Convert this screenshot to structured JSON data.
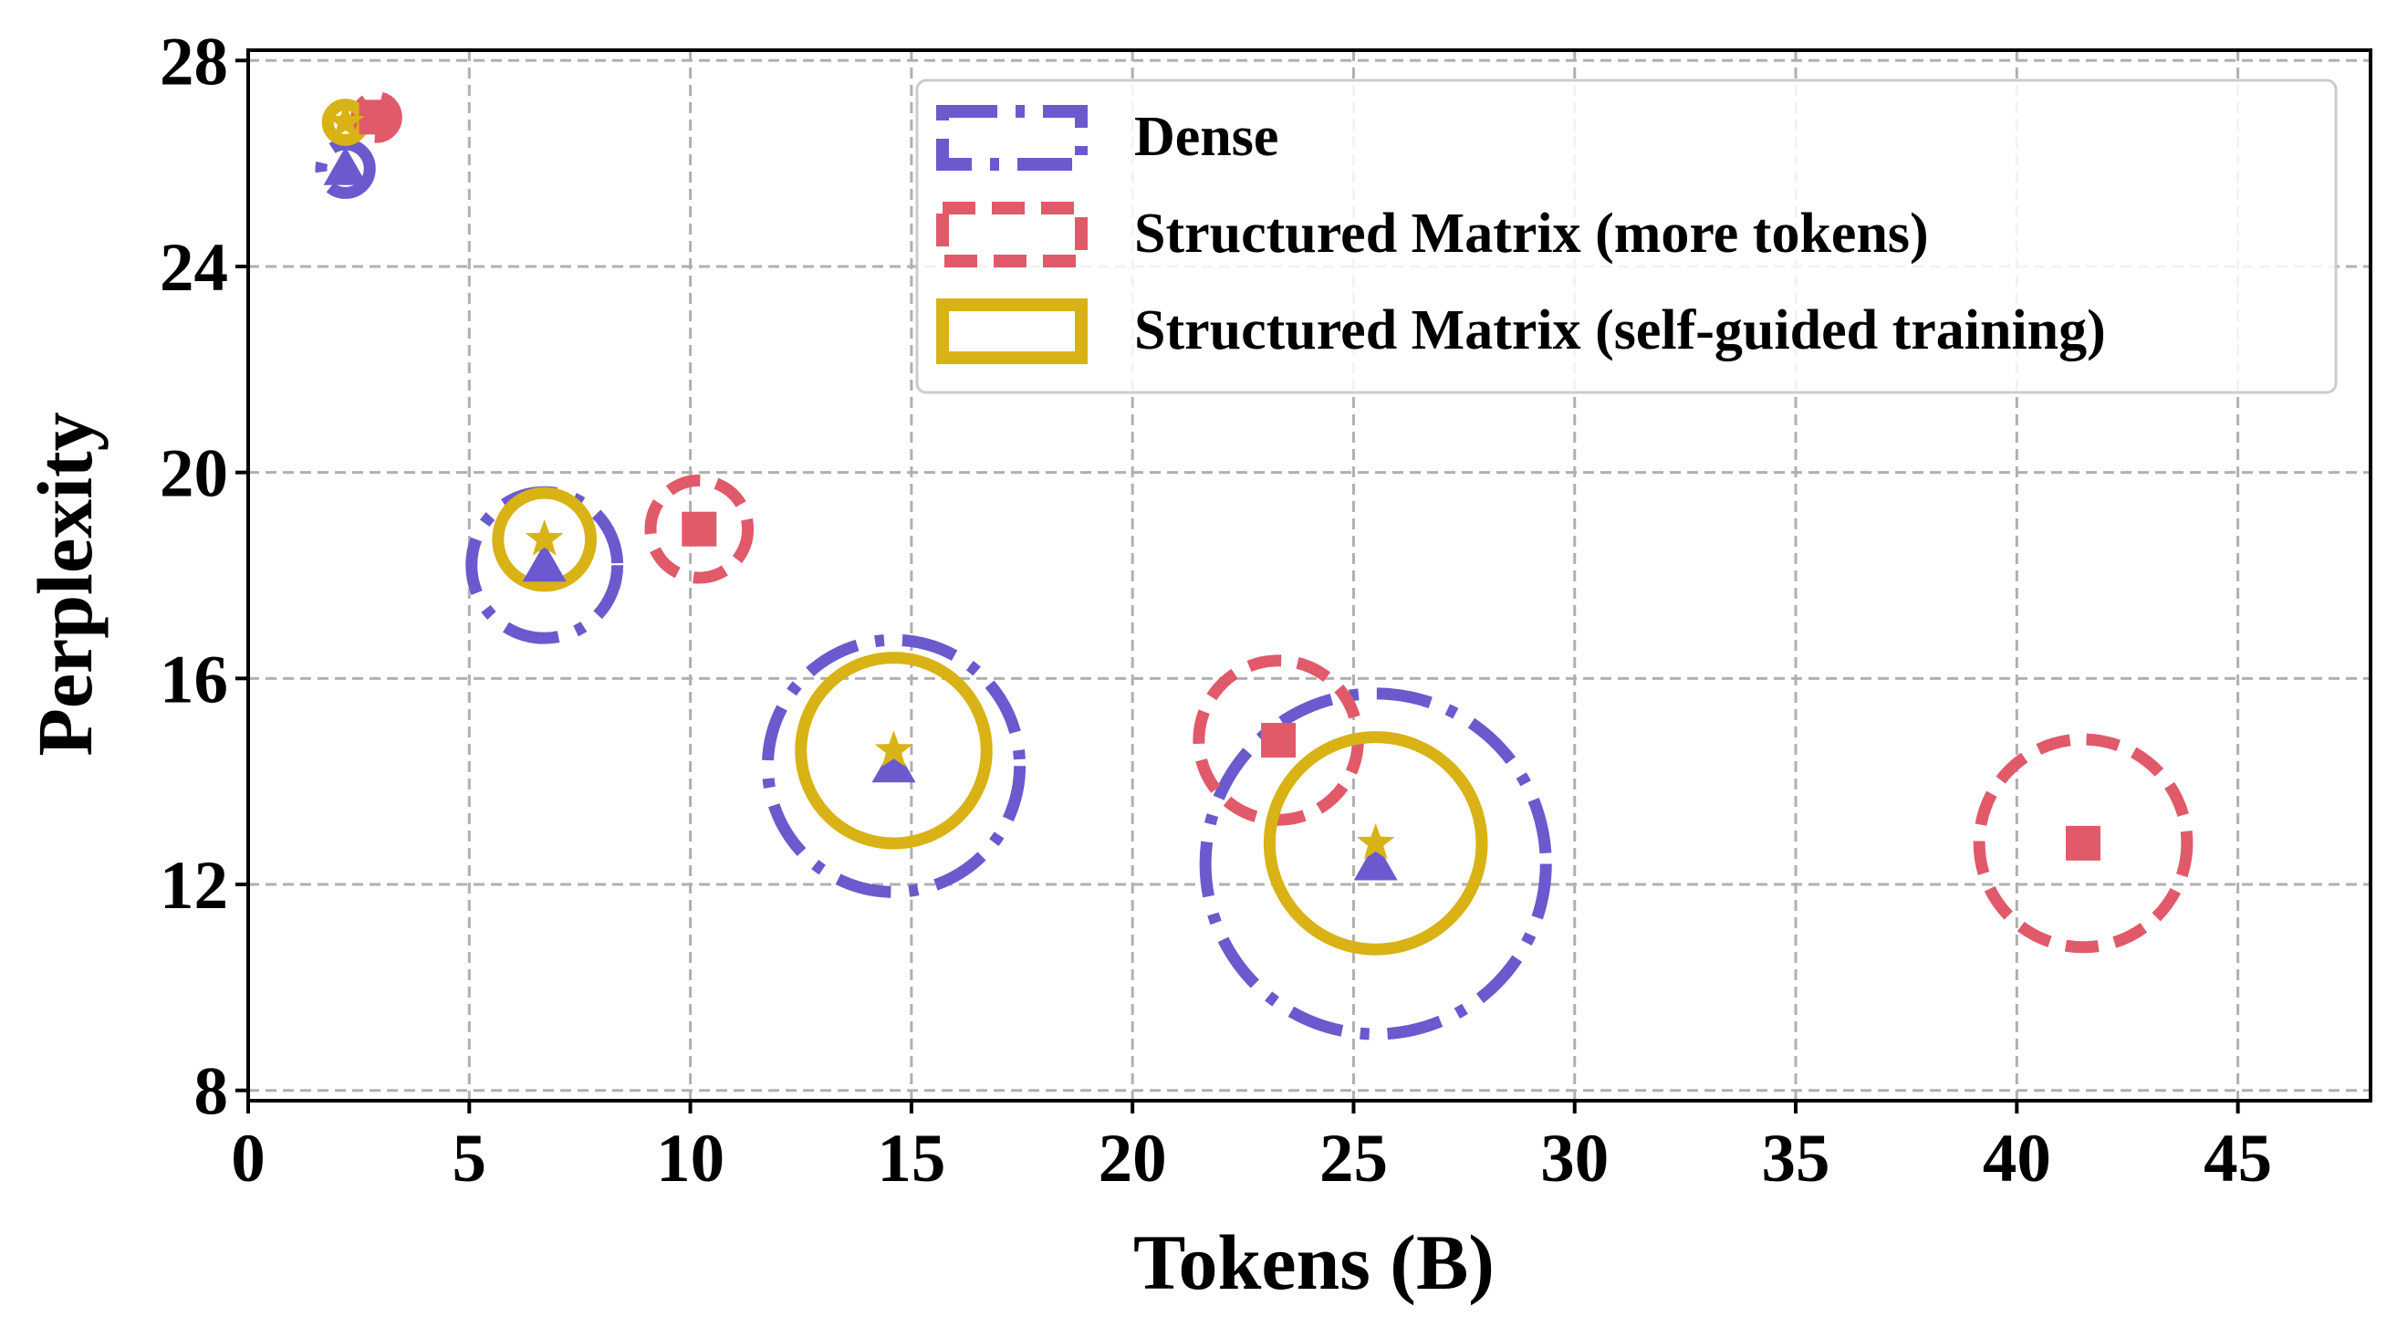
{
  "chart_data": {
    "type": "scatter",
    "xlabel": "Tokens (B)",
    "ylabel": "Perplexity",
    "xlim": [
      0,
      48
    ],
    "ylim": [
      7.8,
      28.2
    ],
    "xticks": [
      "0",
      "5",
      "10",
      "15",
      "20",
      "25",
      "30",
      "35",
      "40",
      "45"
    ],
    "yticks": [
      "8",
      "12",
      "16",
      "20",
      "24",
      "28"
    ],
    "grid": true,
    "legend_position": "top-right",
    "series": [
      {
        "name": "Dense",
        "color": "#6a5acd",
        "marker": "triangle",
        "circle_style": "dash-dot",
        "points": [
          {
            "x": 2.2,
            "y": 25.9,
            "r": 0.55
          },
          {
            "x": 6.7,
            "y": 18.2,
            "r": 1.65
          },
          {
            "x": 14.6,
            "y": 14.3,
            "r": 2.85
          },
          {
            "x": 25.5,
            "y": 12.4,
            "r": 3.85
          }
        ]
      },
      {
        "name": "Structured Matrix (more tokens)",
        "color": "#e05a6a",
        "marker": "square",
        "circle_style": "dashed",
        "points": [
          {
            "x": 2.9,
            "y": 26.9,
            "r": 0.45
          },
          {
            "x": 10.2,
            "y": 18.9,
            "r": 1.1
          },
          {
            "x": 23.3,
            "y": 14.8,
            "r": 1.8
          },
          {
            "x": 41.5,
            "y": 12.8,
            "r": 2.35
          }
        ]
      },
      {
        "name": "Structured Matrix (self-guided training)",
        "color": "#d9b216",
        "marker": "star",
        "circle_style": "solid",
        "points": [
          {
            "x": 2.2,
            "y": 26.8,
            "r": 0.4
          },
          {
            "x": 6.7,
            "y": 18.7,
            "r": 1.05
          },
          {
            "x": 14.6,
            "y": 14.6,
            "r": 2.1
          },
          {
            "x": 25.5,
            "y": 12.8,
            "r": 2.4
          }
        ]
      }
    ]
  }
}
